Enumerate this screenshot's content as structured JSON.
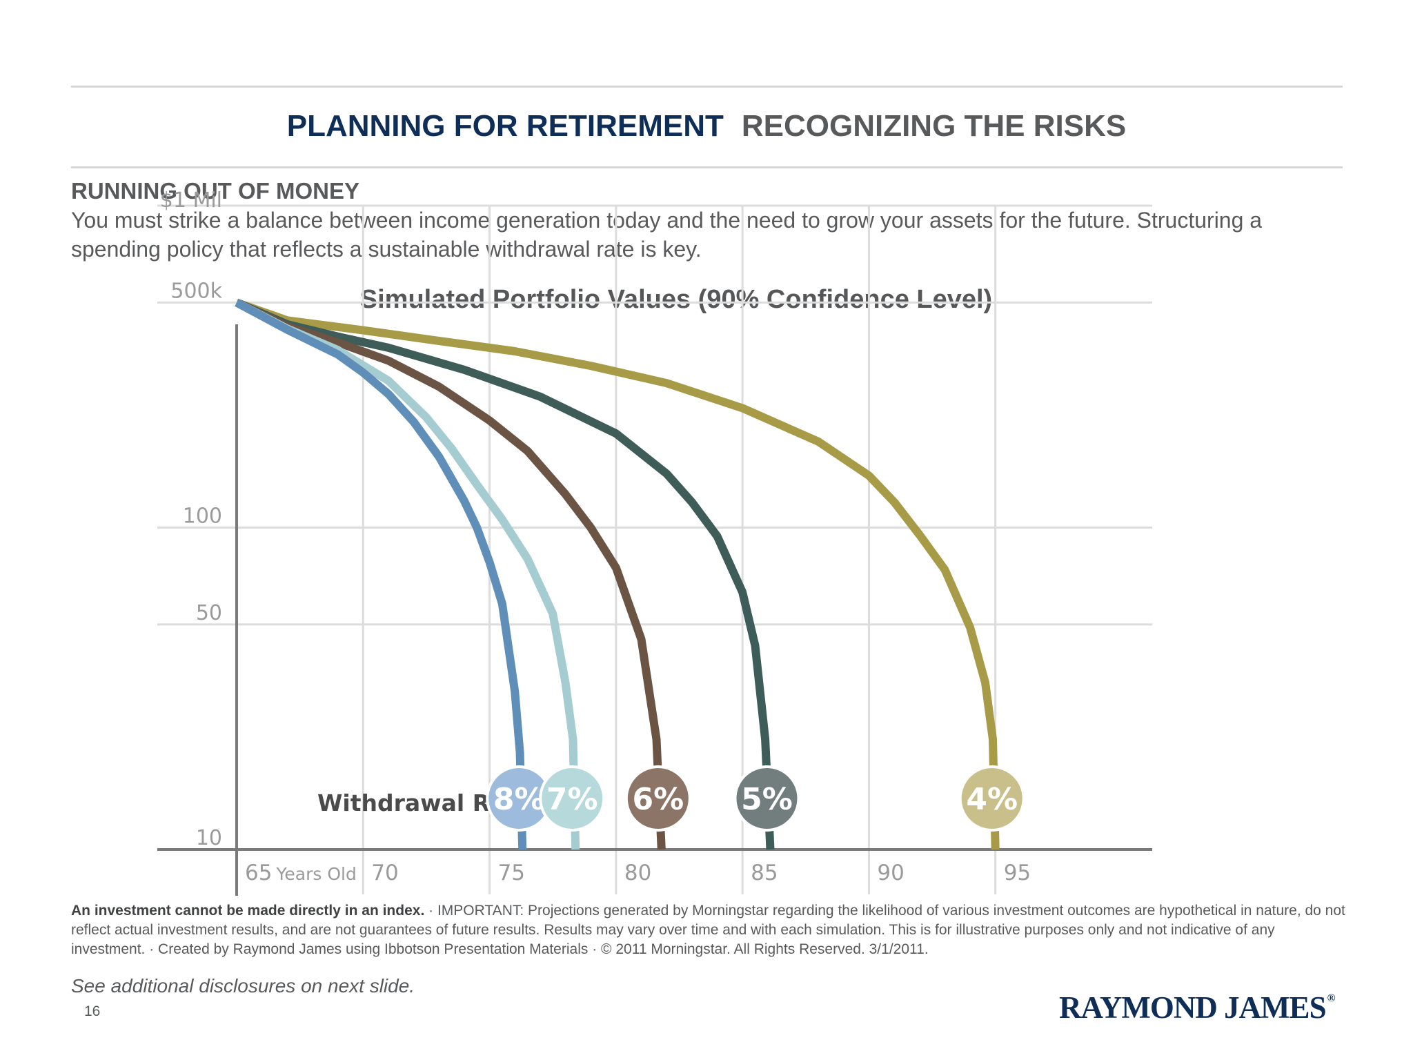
{
  "header": {
    "title_main": "PLANNING FOR RETIREMENT",
    "title_sub": "RECOGNIZING THE RISKS"
  },
  "section": {
    "heading": "RUNNING OUT OF MONEY",
    "body": "You must strike a balance between income generation today and the need to grow your assets for the future. Structuring a spending policy that reflects a sustainable withdrawal rate is key."
  },
  "chart_data": {
    "type": "line",
    "title": "Simulated Portfolio Values (90% Confidence Level)",
    "xlabel": "",
    "ylabel": "",
    "x_scale": "linear",
    "y_scale": "log",
    "xlim": [
      65,
      98.5
    ],
    "ylim": [
      10,
      1000
    ],
    "x_ticks": [
      {
        "value": 65,
        "label": "65",
        "suffix": "Years Old"
      },
      {
        "value": 70,
        "label": "70"
      },
      {
        "value": 75,
        "label": "75"
      },
      {
        "value": 80,
        "label": "80"
      },
      {
        "value": 85,
        "label": "85"
      },
      {
        "value": 90,
        "label": "90"
      },
      {
        "value": 95,
        "label": "95"
      }
    ],
    "y_ticks": [
      {
        "value": 1000,
        "label": "$1 Mil"
      },
      {
        "value": 500,
        "label": "500k"
      },
      {
        "value": 100,
        "label": "100"
      },
      {
        "value": 50,
        "label": "50"
      },
      {
        "value": 10,
        "label": "10"
      }
    ],
    "grid": true,
    "legend_title": "Withdrawal Rate:",
    "series": [
      {
        "name": "8%",
        "color": "#5f8eb8",
        "badge_color": "#9dbbdc",
        "points": [
          [
            65,
            500
          ],
          [
            67,
            412
          ],
          [
            69,
            345
          ],
          [
            70,
            303
          ],
          [
            71,
            260
          ],
          [
            72,
            213
          ],
          [
            73,
            166
          ],
          [
            74,
            121
          ],
          [
            74.5,
            100
          ],
          [
            75,
            78
          ],
          [
            75.5,
            58
          ],
          [
            76,
            31
          ],
          [
            76.2,
            20
          ],
          [
            76.3,
            10
          ]
        ]
      },
      {
        "name": "7%",
        "color": "#a5ccd0",
        "badge_color": "#b6d9dc",
        "points": [
          [
            65,
            500
          ],
          [
            67,
            415
          ],
          [
            69,
            356
          ],
          [
            71,
            286
          ],
          [
            72.5,
            220
          ],
          [
            73.5,
            176
          ],
          [
            74.5,
            136
          ],
          [
            75.5,
            106
          ],
          [
            76.5,
            80
          ],
          [
            77.5,
            54
          ],
          [
            78,
            33
          ],
          [
            78.3,
            22
          ],
          [
            78.4,
            10
          ]
        ]
      },
      {
        "name": "6%",
        "color": "#6b5444",
        "badge_color": "#8c7566",
        "points": [
          [
            65,
            500
          ],
          [
            67,
            422
          ],
          [
            69,
            376
          ],
          [
            71,
            330
          ],
          [
            73,
            274
          ],
          [
            75,
            215
          ],
          [
            76.5,
            173
          ],
          [
            78,
            127
          ],
          [
            79,
            100
          ],
          [
            80,
            75
          ],
          [
            81,
            45
          ],
          [
            81.6,
            22
          ],
          [
            81.8,
            10
          ]
        ]
      },
      {
        "name": "5%",
        "color": "#3e5d58",
        "badge_color": "#727e7d",
        "points": [
          [
            65,
            500
          ],
          [
            67,
            428
          ],
          [
            69,
            392
          ],
          [
            71,
            362
          ],
          [
            74,
            309
          ],
          [
            77,
            255
          ],
          [
            80,
            196
          ],
          [
            82,
            147
          ],
          [
            83,
            120
          ],
          [
            84,
            94
          ],
          [
            85,
            63
          ],
          [
            85.5,
            43
          ],
          [
            85.9,
            22
          ],
          [
            86.1,
            10
          ]
        ]
      },
      {
        "name": "4%",
        "color": "#a89b48",
        "badge_color": "#c9bf8a",
        "points": [
          [
            65,
            500
          ],
          [
            67,
            440
          ],
          [
            70,
            410
          ],
          [
            73,
            380
          ],
          [
            76,
            353
          ],
          [
            79,
            318
          ],
          [
            82,
            281
          ],
          [
            85,
            235
          ],
          [
            88,
            185
          ],
          [
            90,
            145
          ],
          [
            91,
            120
          ],
          [
            92,
            95
          ],
          [
            93,
            74
          ],
          [
            94,
            49
          ],
          [
            94.6,
            33
          ],
          [
            94.9,
            22
          ],
          [
            95,
            10
          ]
        ]
      }
    ]
  },
  "disclaimer": {
    "lead": "An investment cannot be made directly in an index.",
    "text": " · IMPORTANT: Projections generated by Morningstar regarding the likelihood of various investment outcomes are hypothetical in nature, do not reflect actual investment results, and are not guarantees of future results. Results may vary over time and with each simulation. This is for illustrative purposes only and not indicative of any investment. · Created by Raymond James using Ibbotson Presentation Materials · © 2011 Morningstar. All Rights Reserved. 3/1/2011."
  },
  "footer": {
    "see_more": "See additional disclosures on next slide.",
    "page_number": "16",
    "logo_text": "RAYMOND JAMES",
    "logo_mark": "®"
  }
}
